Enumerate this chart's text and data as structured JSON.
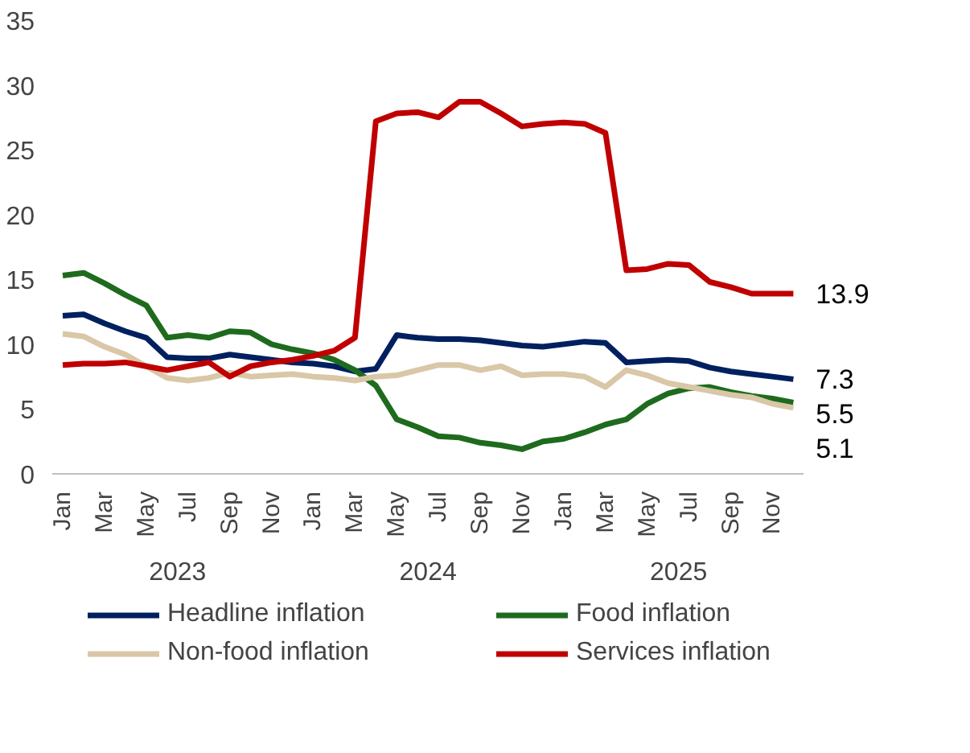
{
  "chart_data": {
    "type": "line",
    "categories": [
      "Jan",
      null,
      "Mar",
      null,
      "May",
      null,
      "Jul",
      null,
      "Sep",
      null,
      "Nov",
      null,
      "Jan",
      null,
      "Mar",
      null,
      "May",
      null,
      "Jul",
      null,
      "Sep",
      null,
      "Nov",
      null,
      "Jan",
      null,
      "Mar",
      null,
      "May",
      null,
      "Jul",
      null,
      "Sep",
      null,
      "Nov",
      null
    ],
    "annotations": [
      "2023",
      "2024",
      "2025"
    ],
    "ylim": [
      0,
      35
    ],
    "yticks": [
      0,
      5,
      10,
      15,
      20,
      25,
      30,
      35
    ],
    "grid": false,
    "legend": "bottom",
    "series": [
      {
        "name": "Headline inflation",
        "color": "#002060",
        "values": [
          12.2,
          12.3,
          11.6,
          11.0,
          10.5,
          9.0,
          8.9,
          8.9,
          9.2,
          9.0,
          8.8,
          8.6,
          8.5,
          8.3,
          7.9,
          8.1,
          10.7,
          10.5,
          10.4,
          10.4,
          10.3,
          10.1,
          9.9,
          9.8,
          10.0,
          10.2,
          10.1,
          8.6,
          8.7,
          8.8,
          8.7,
          8.2,
          7.9,
          7.7,
          7.5,
          7.3
        ],
        "value_labels": [
          null,
          null,
          null,
          null,
          null,
          null,
          null,
          null,
          null,
          null,
          null,
          null,
          null,
          null,
          null,
          null,
          null,
          null,
          null,
          null,
          null,
          null,
          null,
          null,
          null,
          null,
          null,
          null,
          null,
          null,
          null,
          null,
          null,
          null,
          null,
          "7.3"
        ]
      },
      {
        "name": "Food inflation",
        "color": "#1e6b1e",
        "values": [
          15.3,
          15.5,
          14.7,
          13.8,
          13.0,
          10.5,
          10.7,
          10.5,
          11.0,
          10.9,
          10.0,
          9.6,
          9.3,
          8.8,
          8.0,
          6.8,
          4.2,
          3.6,
          2.9,
          2.8,
          2.4,
          2.2,
          1.9,
          2.5,
          2.7,
          3.2,
          3.8,
          4.2,
          5.4,
          6.2,
          6.6,
          6.7,
          6.3,
          6.0,
          5.8,
          5.5
        ],
        "value_labels": [
          null,
          null,
          null,
          null,
          null,
          null,
          null,
          null,
          null,
          null,
          null,
          null,
          null,
          null,
          null,
          null,
          null,
          null,
          null,
          null,
          null,
          null,
          null,
          null,
          null,
          null,
          null,
          null,
          null,
          null,
          null,
          null,
          null,
          null,
          null,
          "5.5"
        ]
      },
      {
        "name": "Non-food inflation",
        "color": "#d9c7a7",
        "values": [
          10.8,
          10.6,
          9.8,
          9.2,
          8.3,
          7.4,
          7.2,
          7.4,
          7.8,
          7.5,
          7.6,
          7.7,
          7.5,
          7.4,
          7.2,
          7.5,
          7.6,
          8.0,
          8.4,
          8.4,
          8.0,
          8.3,
          7.6,
          7.7,
          7.7,
          7.5,
          6.7,
          8.0,
          7.6,
          7.0,
          6.7,
          6.4,
          6.1,
          5.9,
          5.4,
          5.1
        ],
        "value_labels": [
          null,
          null,
          null,
          null,
          null,
          null,
          null,
          null,
          null,
          null,
          null,
          null,
          null,
          null,
          null,
          null,
          null,
          null,
          null,
          null,
          null,
          null,
          null,
          null,
          null,
          null,
          null,
          null,
          null,
          null,
          null,
          null,
          null,
          null,
          null,
          "5.1"
        ]
      },
      {
        "name": "Services inflation",
        "color": "#c00000",
        "values": [
          8.4,
          8.5,
          8.5,
          8.6,
          8.3,
          8.0,
          8.3,
          8.6,
          7.5,
          8.3,
          8.6,
          8.8,
          9.1,
          9.5,
          10.5,
          27.2,
          27.8,
          27.9,
          27.5,
          28.7,
          28.7,
          27.8,
          26.8,
          27.0,
          27.1,
          27.0,
          26.3,
          15.7,
          15.8,
          16.2,
          16.1,
          14.8,
          14.4,
          13.9,
          13.9,
          13.9
        ],
        "value_labels": [
          null,
          null,
          null,
          null,
          null,
          null,
          null,
          null,
          null,
          null,
          null,
          null,
          null,
          null,
          null,
          null,
          null,
          null,
          null,
          null,
          null,
          null,
          null,
          null,
          null,
          null,
          null,
          null,
          null,
          null,
          null,
          null,
          null,
          null,
          null,
          "13.9"
        ]
      }
    ]
  }
}
